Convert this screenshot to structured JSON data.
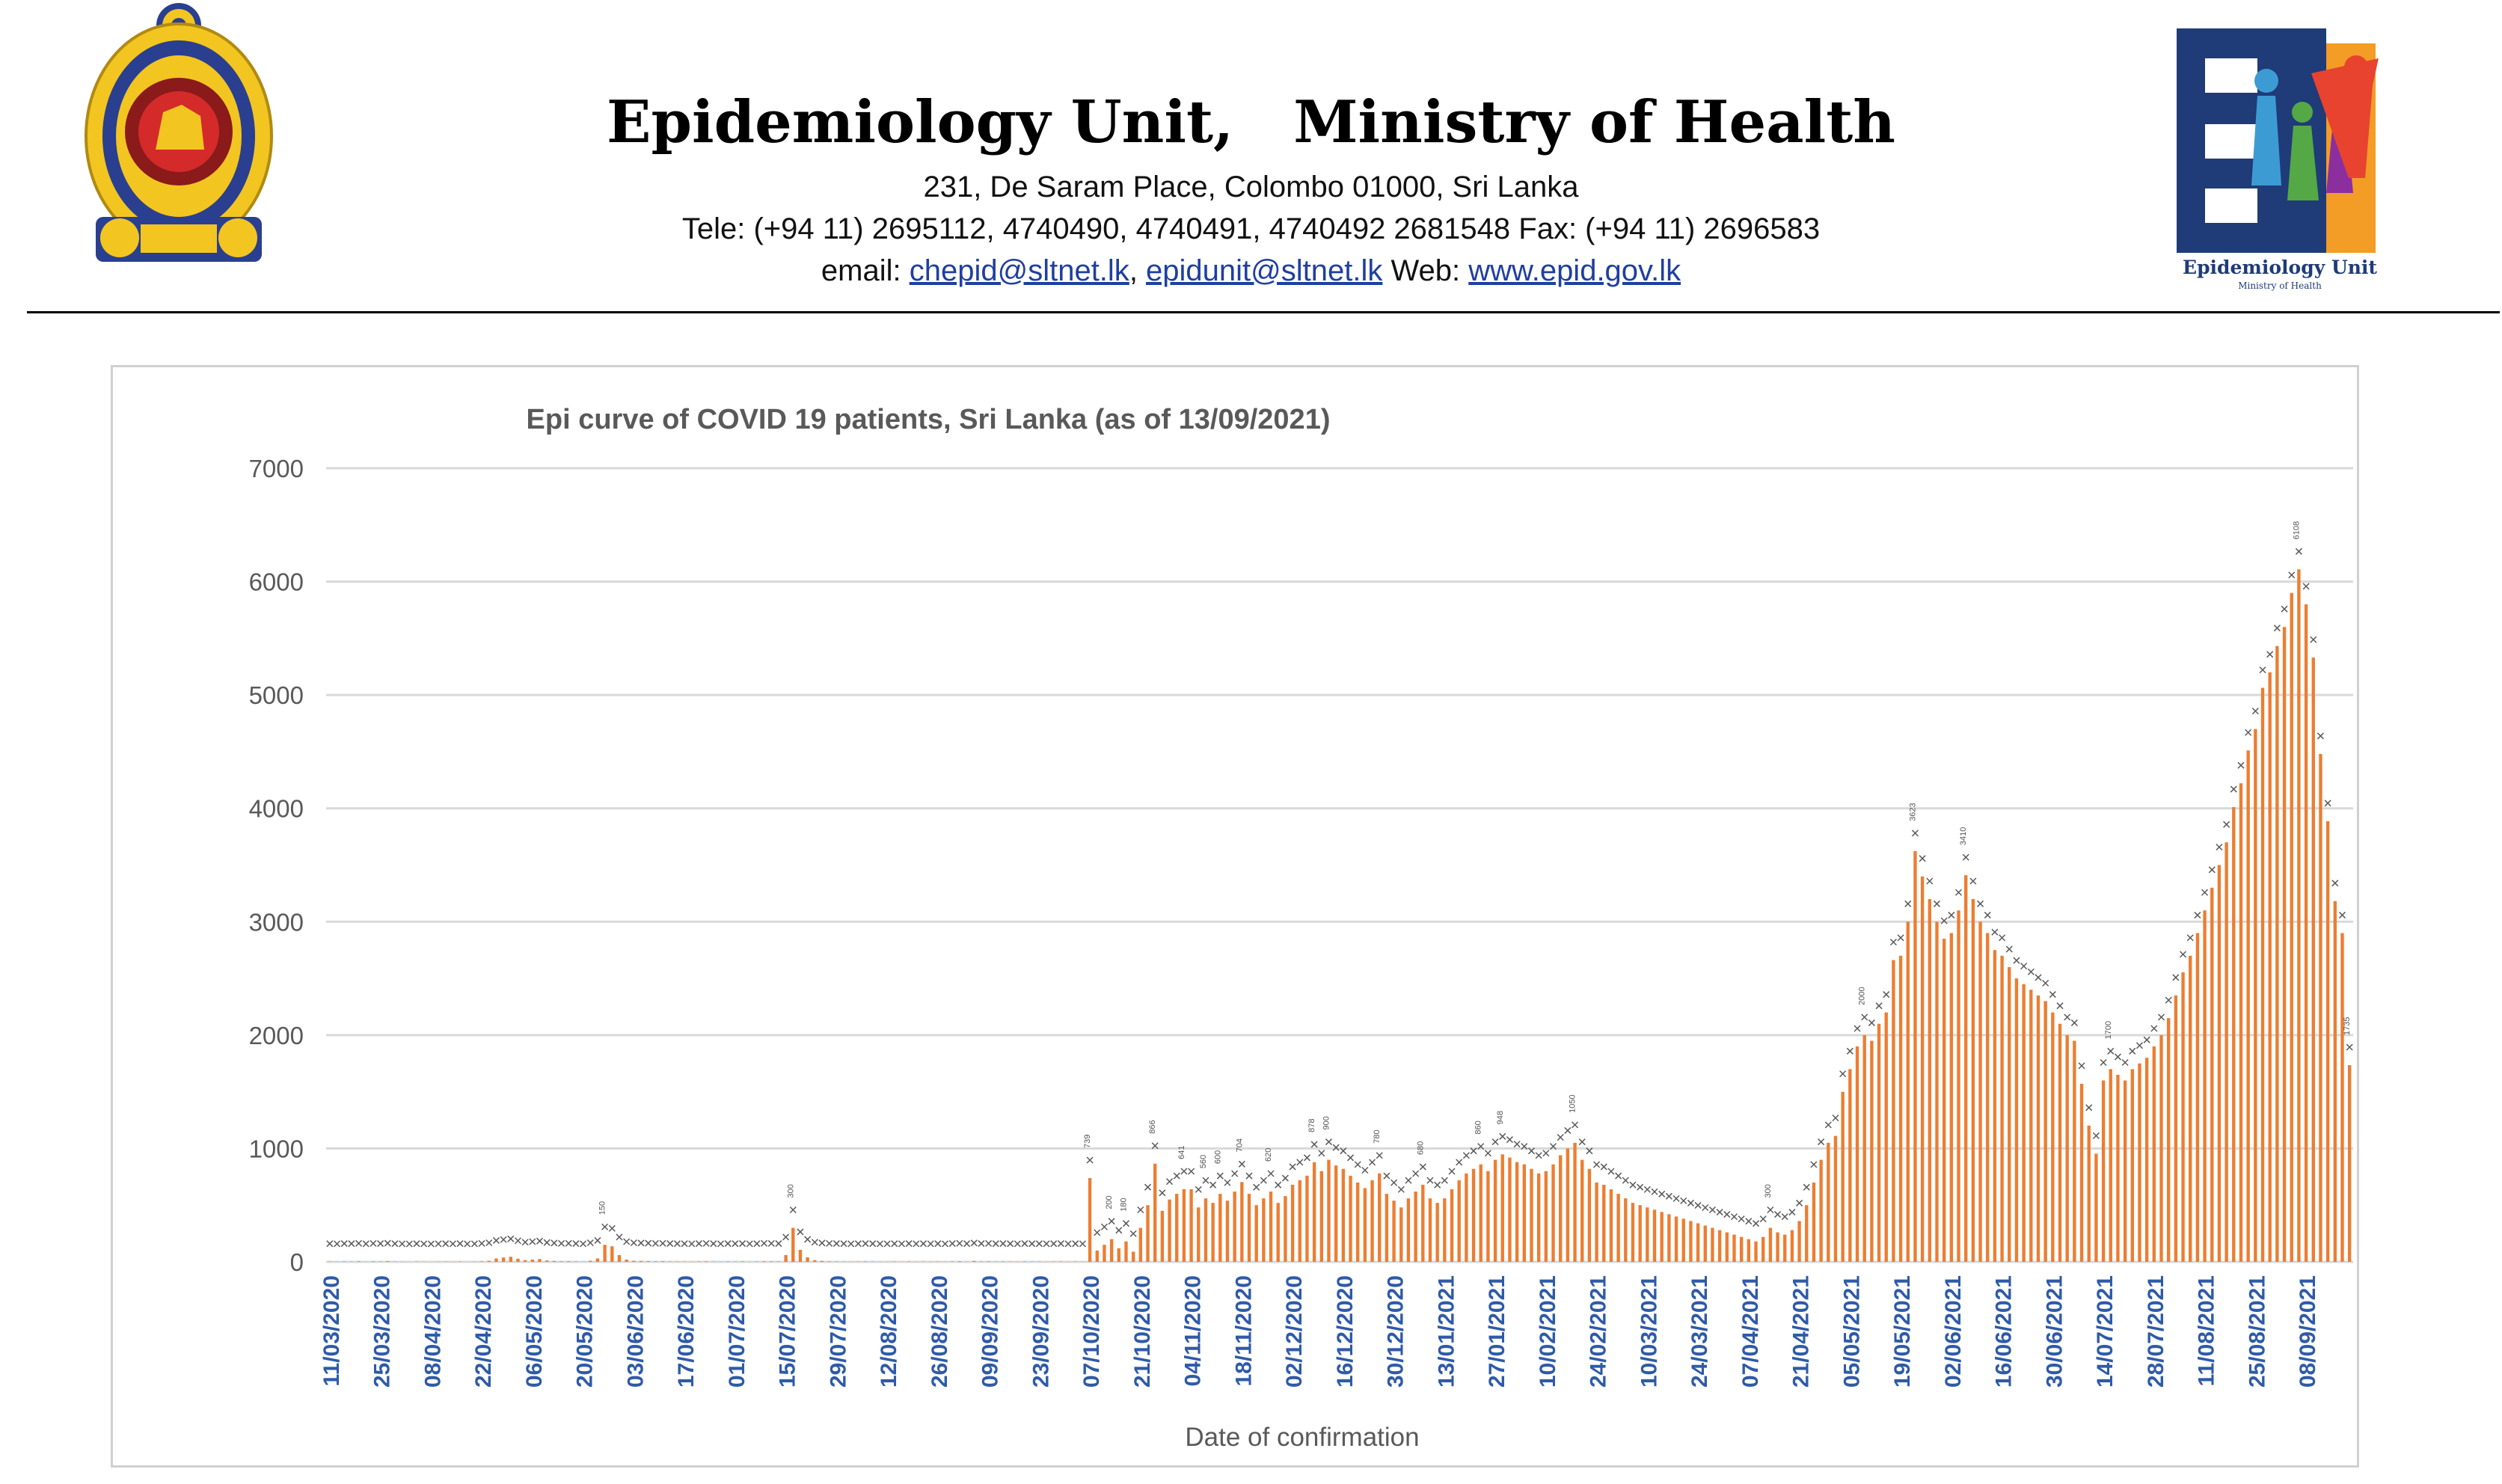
{
  "header": {
    "org_name_left": "Epidemiology Unit,",
    "org_name_right": "Ministry of Health",
    "address": "231, De Saram Place, Colombo 01000, Sri Lanka",
    "phone": "Tele: (+94 11) 2695112, 4740490, 4740491, 4740492 2681548  Fax: (+94 11) 2696583",
    "email_label": "email: ",
    "email_1": "chepid@sltnet.lk",
    "email_2": "epidunit@sltnet.lk",
    "web_label": " Web: ",
    "web": "www.epid.gov.lk",
    "logo_text": "Epidemiology Unit",
    "logo_subtext": "Ministry of Health"
  },
  "colors": {
    "bar": "#ed7d31",
    "grid": "#d9d9d9",
    "axis_date_text": "#2e5aa8",
    "axis_value_text": "#595959",
    "marker": "#595959"
  },
  "chart_data": {
    "type": "bar",
    "title": "Epi curve of COVID 19 patients, Sri Lanka  (as of 13/09/2021)",
    "xlabel": "Date of confirmation",
    "ylabel": "",
    "ylim": [
      0,
      7000
    ],
    "yticks": [
      0,
      1000,
      2000,
      3000,
      4000,
      5000,
      6000,
      7000
    ],
    "grid": true,
    "legend": "none",
    "x_tick_labels": [
      "11/03/2020",
      "25/03/2020",
      "08/04/2020",
      "22/04/2020",
      "06/05/2020",
      "20/05/2020",
      "03/06/2020",
      "17/06/2020",
      "01/07/2020",
      "15/07/2020",
      "29/07/2020",
      "12/08/2020",
      "26/08/2020",
      "09/09/2020",
      "23/09/2020",
      "07/10/2020",
      "21/10/2020",
      "04/11/2020",
      "18/11/2020",
      "02/12/2020",
      "16/12/2020",
      "30/12/2020",
      "13/01/2021",
      "27/01/2021",
      "10/02/2021",
      "24/02/2021",
      "10/03/2021",
      "24/03/2021",
      "07/04/2021",
      "21/04/2021",
      "05/05/2021",
      "19/05/2021",
      "02/06/2021",
      "16/06/2021",
      "30/06/2021",
      "14/07/2021",
      "28/07/2021",
      "11/08/2021",
      "25/08/2021",
      "08/09/2021"
    ],
    "weekly_values": [
      [
        2,
        1,
        3,
        2,
        5,
        1,
        4
      ],
      [
        3,
        6,
        2,
        1,
        0,
        2,
        1
      ],
      [
        0,
        1,
        2,
        1,
        3,
        0,
        1
      ],
      [
        4,
        10,
        30,
        38,
        45,
        28,
        15
      ],
      [
        20,
        25,
        12,
        8,
        4,
        5,
        3
      ],
      [
        1,
        10,
        30,
        150,
        137,
        60,
        20
      ],
      [
        10,
        8,
        6,
        4,
        5,
        3,
        2
      ],
      [
        2,
        1,
        3,
        4,
        2,
        1,
        3
      ],
      [
        2,
        3,
        1,
        2,
        5,
        4,
        3
      ],
      [
        60,
        300,
        106,
        40,
        15,
        8,
        4
      ],
      [
        3,
        2,
        1,
        2,
        3,
        2,
        1
      ],
      [
        1,
        2,
        1,
        3,
        1,
        2,
        1
      ],
      [
        2,
        1,
        3,
        5,
        2,
        8,
        3
      ],
      [
        4,
        2,
        3,
        2,
        1,
        3,
        2
      ],
      [
        2,
        1,
        2,
        3,
        1,
        2,
        1
      ],
      [
        739,
        100,
        150,
        200,
        120,
        180,
        90
      ],
      [
        300,
        500,
        866,
        450,
        550,
        600,
        641
      ],
      [
        640,
        480,
        560,
        520,
        600,
        540,
        620
      ],
      [
        704,
        600,
        500,
        560,
        620,
        520,
        580
      ],
      [
        680,
        720,
        760,
        878,
        800,
        900,
        850
      ],
      [
        820,
        760,
        700,
        650,
        720,
        780,
        600
      ],
      [
        540,
        480,
        560,
        620,
        680,
        560,
        520
      ],
      [
        560,
        640,
        720,
        780,
        820,
        860,
        800
      ],
      [
        900,
        948,
        920,
        880,
        860,
        820,
        780
      ],
      [
        800,
        860,
        940,
        1000,
        1050,
        900,
        820
      ],
      [
        700,
        680,
        640,
        600,
        560,
        520,
        500
      ],
      [
        480,
        460,
        440,
        420,
        400,
        380,
        360
      ],
      [
        340,
        320,
        300,
        280,
        260,
        240,
        220
      ],
      [
        200,
        180,
        220,
        300,
        260,
        240,
        280
      ],
      [
        360,
        500,
        700,
        900,
        1050,
        1111,
        1500
      ],
      [
        1700,
        1900,
        2000,
        1950,
        2100,
        2200,
        2662
      ],
      [
        2700,
        3000,
        3623,
        3400,
        3200,
        3000,
        2850
      ],
      [
        2900,
        3100,
        3410,
        3200,
        3000,
        2900,
        2750
      ],
      [
        2700,
        2600,
        2500,
        2450,
        2400,
        2350,
        2300
      ],
      [
        2200,
        2100,
        2000,
        1950,
        1571,
        1202,
        954
      ],
      [
        1600,
        1700,
        1650,
        1600,
        1700,
        1750,
        1800
      ],
      [
        1900,
        2000,
        2150,
        2350,
        2554,
        2700,
        2900
      ],
      [
        3100,
        3300,
        3500,
        3700,
        4011,
        4221,
        4511
      ],
      [
        4700,
        5063,
        5200,
        5432,
        5600,
        5900,
        6108
      ],
      [
        5800,
        5330,
        4480,
        3887,
        3182,
        2900,
        1735
      ]
    ]
  }
}
